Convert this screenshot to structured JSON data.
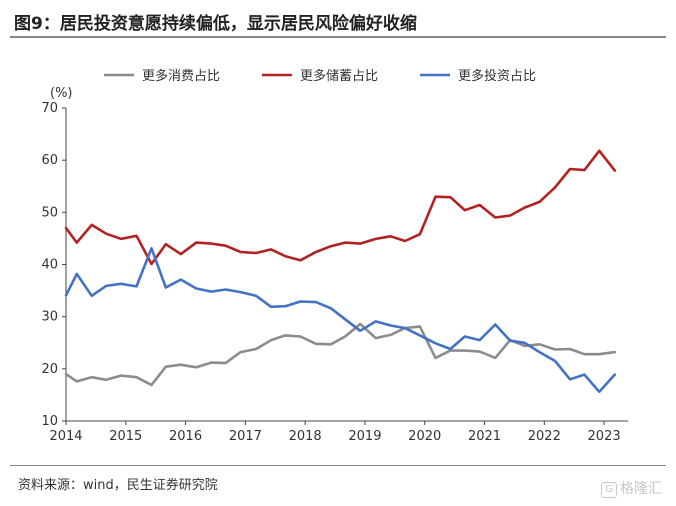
{
  "figure_title": "图9：居民投资意愿持续偏低，显示居民风险偏好收缩",
  "source_note": "资料来源：wind，民生证券研究院",
  "watermark": "格隆汇",
  "chart_data": {
    "type": "line",
    "unit_label": "(%)",
    "ylim": [
      10,
      70
    ],
    "y_ticks": [
      10,
      20,
      30,
      40,
      50,
      60,
      70
    ],
    "x_range": [
      2014,
      2023.4
    ],
    "x_ticks": [
      2014,
      2015,
      2016,
      2017,
      2018,
      2019,
      2020,
      2021,
      2022,
      2023
    ],
    "x_tick_labels": [
      "2014",
      "2015",
      "2016",
      "2017",
      "2018",
      "2019",
      "2020",
      "2021",
      "2022",
      "2023"
    ],
    "grid": false,
    "legend_position": "top",
    "x": [
      2014.0,
      2014.18,
      2014.43,
      2014.67,
      2014.92,
      2015.18,
      2015.43,
      2015.67,
      2015.92,
      2016.18,
      2016.43,
      2016.67,
      2016.92,
      2017.18,
      2017.43,
      2017.67,
      2017.92,
      2018.18,
      2018.43,
      2018.67,
      2018.92,
      2019.18,
      2019.43,
      2019.67,
      2019.92,
      2020.18,
      2020.43,
      2020.67,
      2020.92,
      2021.18,
      2021.43,
      2021.67,
      2021.92,
      2022.18,
      2022.43,
      2022.67,
      2022.92,
      2023.18
    ],
    "series": [
      {
        "name": "更多消费占比",
        "color": "#8c8c8c",
        "values": [
          19.0,
          17.6,
          18.4,
          17.9,
          18.7,
          18.4,
          16.9,
          20.4,
          20.8,
          20.3,
          21.2,
          21.1,
          23.2,
          23.8,
          25.5,
          26.4,
          26.2,
          24.8,
          24.7,
          26.2,
          28.6,
          25.9,
          26.5,
          27.8,
          28.1,
          22.1,
          23.5,
          23.5,
          23.3,
          22.1,
          25.5,
          24.4,
          24.7,
          23.7,
          23.8,
          22.8,
          22.8,
          23.2
        ]
      },
      {
        "name": "更多储蓄占比",
        "color": "#b22222",
        "values": [
          47.0,
          44.2,
          47.6,
          45.9,
          44.9,
          45.5,
          40.1,
          43.9,
          42.0,
          44.2,
          44.0,
          43.6,
          42.4,
          42.2,
          42.9,
          41.6,
          40.8,
          42.4,
          43.5,
          44.2,
          44.0,
          44.9,
          45.4,
          44.5,
          45.8,
          53.0,
          52.9,
          50.4,
          51.4,
          49.0,
          49.4,
          50.9,
          52.0,
          54.8,
          58.3,
          58.1,
          61.8,
          58.0
        ]
      },
      {
        "name": "更多投资占比",
        "color": "#4472c4",
        "values": [
          34.1,
          38.2,
          34.0,
          35.9,
          36.3,
          35.8,
          43.1,
          35.6,
          37.1,
          35.4,
          34.8,
          35.2,
          34.7,
          34.0,
          31.9,
          32.0,
          32.9,
          32.8,
          31.6,
          29.5,
          27.3,
          29.1,
          28.3,
          27.8,
          26.4,
          24.9,
          23.8,
          26.2,
          25.5,
          28.5,
          25.4,
          25.0,
          23.2,
          21.5,
          18.0,
          18.9,
          15.6,
          18.9
        ]
      }
    ]
  }
}
